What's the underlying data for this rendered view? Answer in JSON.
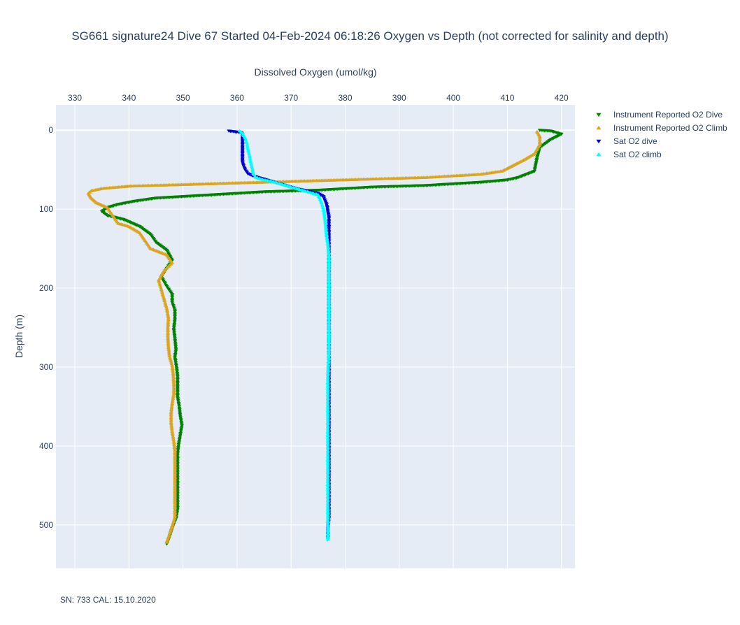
{
  "chart_data": {
    "type": "scatter",
    "title": "SG661 signature24 Dive 67 Started 04-Feb-2024 06:18:26  Oxygen vs Depth (not corrected for salinity and depth)",
    "xlabel": "Dissolved Oxygen (umol/kg)",
    "ylabel": "Depth (m)",
    "xlim": [
      326.5,
      422.5
    ],
    "ylim": [
      555,
      -32
    ],
    "x_ticks": [
      330,
      340,
      350,
      360,
      370,
      380,
      390,
      400,
      410,
      420
    ],
    "y_ticks": [
      0,
      100,
      200,
      300,
      400,
      500
    ],
    "x_axis_side": "top",
    "y_reversed": true,
    "grid": true,
    "legend_position": "top-right",
    "annotation": "SN: 733  CAL: 15.10.2020",
    "series": [
      {
        "name": "Instrument Reported O2 Dive",
        "marker": "triangle-down",
        "color": "#008000",
        "points": [
          [
            416,
            0
          ],
          [
            418,
            1
          ],
          [
            420,
            5
          ],
          [
            418,
            12
          ],
          [
            416,
            22
          ],
          [
            415.5,
            35
          ],
          [
            415,
            52
          ],
          [
            412,
            60
          ],
          [
            410,
            63
          ],
          [
            405,
            66
          ],
          [
            400,
            68
          ],
          [
            395,
            70
          ],
          [
            390,
            71
          ],
          [
            385,
            72
          ],
          [
            380,
            74
          ],
          [
            375,
            76
          ],
          [
            370,
            77
          ],
          [
            365,
            78
          ],
          [
            360,
            80
          ],
          [
            355,
            82
          ],
          [
            350,
            84
          ],
          [
            345,
            86
          ],
          [
            341,
            90
          ],
          [
            338,
            94
          ],
          [
            336,
            98
          ],
          [
            335,
            103
          ],
          [
            336,
            108
          ],
          [
            339,
            113
          ],
          [
            342,
            122
          ],
          [
            344,
            132
          ],
          [
            345,
            142
          ],
          [
            347,
            152
          ],
          [
            348,
            165
          ],
          [
            347,
            175
          ],
          [
            346,
            186
          ],
          [
            347,
            198
          ],
          [
            348,
            208
          ],
          [
            348,
            218
          ],
          [
            348.5,
            228
          ],
          [
            348.5,
            240
          ],
          [
            348.3,
            252
          ],
          [
            348.5,
            264
          ],
          [
            348.7,
            278
          ],
          [
            348.5,
            288
          ],
          [
            348.8,
            300
          ],
          [
            349,
            312
          ],
          [
            349,
            325
          ],
          [
            349,
            338
          ],
          [
            349.3,
            350
          ],
          [
            349.5,
            362
          ],
          [
            349.8,
            374
          ],
          [
            349.5,
            386
          ],
          [
            349.2,
            398
          ],
          [
            349,
            410
          ],
          [
            349,
            420
          ],
          [
            349,
            432
          ],
          [
            349,
            444
          ],
          [
            349,
            456
          ],
          [
            349,
            468
          ],
          [
            349,
            480
          ],
          [
            348.7,
            492
          ],
          [
            348,
            504
          ],
          [
            347.5,
            515
          ],
          [
            347,
            524
          ]
        ]
      },
      {
        "name": "Instrument Reported O2 Climb",
        "marker": "triangle-up",
        "color": "#daa520",
        "points": [
          [
            347,
            522
          ],
          [
            347.5,
            512
          ],
          [
            348,
            502
          ],
          [
            348.5,
            490
          ],
          [
            348.5,
            478
          ],
          [
            348.5,
            466
          ],
          [
            348.5,
            454
          ],
          [
            348.5,
            442
          ],
          [
            348.5,
            430
          ],
          [
            348.5,
            418
          ],
          [
            348.5,
            406
          ],
          [
            348.3,
            394
          ],
          [
            348,
            382
          ],
          [
            347.8,
            370
          ],
          [
            347.8,
            358
          ],
          [
            348,
            346
          ],
          [
            348.3,
            334
          ],
          [
            348.3,
            322
          ],
          [
            348.2,
            310
          ],
          [
            348,
            298
          ],
          [
            347.5,
            286
          ],
          [
            347.3,
            274
          ],
          [
            347.2,
            262
          ],
          [
            347.2,
            250
          ],
          [
            347.3,
            238
          ],
          [
            347,
            226
          ],
          [
            346.5,
            214
          ],
          [
            346,
            202
          ],
          [
            345.5,
            190
          ],
          [
            346.5,
            178
          ],
          [
            348,
            168
          ],
          [
            347,
            158
          ],
          [
            344,
            150
          ],
          [
            343,
            140
          ],
          [
            342,
            130
          ],
          [
            340,
            122
          ],
          [
            338,
            118
          ],
          [
            337,
            108
          ],
          [
            336,
            98
          ],
          [
            334,
            92
          ],
          [
            333,
            86
          ],
          [
            332.5,
            80
          ],
          [
            333,
            77
          ],
          [
            335,
            74
          ],
          [
            340,
            71
          ],
          [
            345,
            70
          ],
          [
            350,
            69
          ],
          [
            355,
            68
          ],
          [
            360,
            67
          ],
          [
            365,
            66
          ],
          [
            370,
            65
          ],
          [
            375,
            64
          ],
          [
            380,
            63
          ],
          [
            385,
            62
          ],
          [
            390,
            61
          ],
          [
            395,
            60
          ],
          [
            400,
            58
          ],
          [
            405,
            56
          ],
          [
            409,
            52
          ],
          [
            411,
            45
          ],
          [
            413,
            38
          ],
          [
            415,
            30
          ],
          [
            416,
            18
          ],
          [
            416,
            8
          ],
          [
            415.5,
            2
          ]
        ]
      },
      {
        "name": "Sat O2 dive",
        "marker": "triangle-down",
        "color": "#0000cd",
        "points": [
          [
            358.5,
            1
          ],
          [
            360.8,
            3
          ],
          [
            361,
            6
          ],
          [
            361,
            10
          ],
          [
            361,
            15
          ],
          [
            361,
            20
          ],
          [
            361,
            25
          ],
          [
            361,
            30
          ],
          [
            361,
            35
          ],
          [
            361,
            40
          ],
          [
            361.2,
            45
          ],
          [
            361.5,
            50
          ],
          [
            362,
            55
          ],
          [
            363,
            58
          ],
          [
            365,
            62
          ],
          [
            367,
            66
          ],
          [
            369,
            70
          ],
          [
            371,
            74
          ],
          [
            373,
            77
          ],
          [
            375,
            80
          ],
          [
            376,
            84
          ],
          [
            376.2,
            88
          ],
          [
            376.5,
            93
          ],
          [
            376.7,
            98
          ],
          [
            376.8,
            103
          ],
          [
            377,
            110
          ],
          [
            377,
            118
          ],
          [
            377,
            130
          ],
          [
            377,
            145
          ],
          [
            377,
            160
          ],
          [
            377,
            175
          ],
          [
            377,
            190
          ],
          [
            377,
            205
          ],
          [
            377,
            220
          ],
          [
            377,
            235
          ],
          [
            377,
            250
          ],
          [
            377,
            265
          ],
          [
            377,
            280
          ],
          [
            377,
            295
          ],
          [
            377,
            310
          ],
          [
            377,
            325
          ],
          [
            377,
            340
          ],
          [
            377,
            355
          ],
          [
            377,
            370
          ],
          [
            377,
            385
          ],
          [
            377,
            400
          ],
          [
            377,
            415
          ],
          [
            377,
            430
          ],
          [
            377,
            445
          ],
          [
            377,
            460
          ],
          [
            377,
            475
          ],
          [
            377,
            490
          ],
          [
            376.8,
            505
          ],
          [
            376.8,
            518
          ]
        ]
      },
      {
        "name": "Sat O2 climb",
        "marker": "triangle-up",
        "color": "#00ffff",
        "points": [
          [
            376.8,
            518
          ],
          [
            376.8,
            505
          ],
          [
            376.8,
            490
          ],
          [
            376.8,
            475
          ],
          [
            376.8,
            460
          ],
          [
            376.8,
            445
          ],
          [
            376.8,
            430
          ],
          [
            376.8,
            415
          ],
          [
            376.8,
            400
          ],
          [
            376.8,
            385
          ],
          [
            376.8,
            370
          ],
          [
            376.8,
            355
          ],
          [
            376.8,
            340
          ],
          [
            376.8,
            325
          ],
          [
            376.8,
            310
          ],
          [
            376.9,
            295
          ],
          [
            377,
            280
          ],
          [
            377,
            265
          ],
          [
            377,
            250
          ],
          [
            377,
            235
          ],
          [
            377,
            220
          ],
          [
            377,
            205
          ],
          [
            377,
            190
          ],
          [
            377,
            175
          ],
          [
            377,
            160
          ],
          [
            376.8,
            145
          ],
          [
            376.5,
            130
          ],
          [
            376.3,
            115
          ],
          [
            376,
            100
          ],
          [
            375.5,
            90
          ],
          [
            375,
            82
          ],
          [
            373,
            78
          ],
          [
            371,
            74
          ],
          [
            369,
            70
          ],
          [
            367,
            66
          ],
          [
            365,
            63
          ],
          [
            363.5,
            60
          ],
          [
            363,
            55
          ],
          [
            362.8,
            48
          ],
          [
            362.5,
            40
          ],
          [
            362.3,
            32
          ],
          [
            362,
            24
          ],
          [
            361.8,
            16
          ],
          [
            361.5,
            10
          ],
          [
            361,
            4
          ],
          [
            360.5,
            1
          ]
        ]
      }
    ]
  }
}
